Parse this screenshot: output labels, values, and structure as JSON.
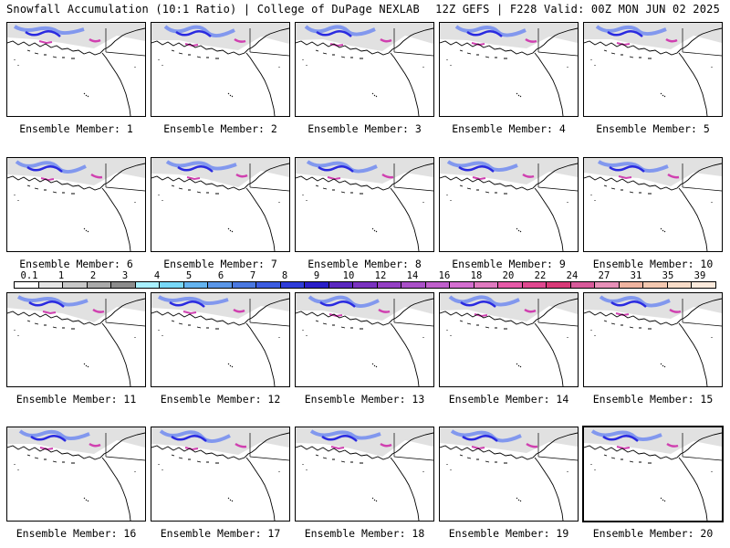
{
  "header": {
    "left": "Snowfall Accumulation (10:1 Ratio) | College of DuPage NEXLAB",
    "right": "12Z GEFS | F228 Valid: 00Z MON JUN 02 2025"
  },
  "members": [
    {
      "label": "Ensemble Member: 1"
    },
    {
      "label": "Ensemble Member: 2"
    },
    {
      "label": "Ensemble Member: 3"
    },
    {
      "label": "Ensemble Member: 4"
    },
    {
      "label": "Ensemble Member: 5"
    },
    {
      "label": "Ensemble Member: 6"
    },
    {
      "label": "Ensemble Member: 7"
    },
    {
      "label": "Ensemble Member: 8"
    },
    {
      "label": "Ensemble Member: 9"
    },
    {
      "label": "Ensemble Member: 10"
    },
    {
      "label": "Ensemble Member: 11"
    },
    {
      "label": "Ensemble Member: 12"
    },
    {
      "label": "Ensemble Member: 13"
    },
    {
      "label": "Ensemble Member: 14"
    },
    {
      "label": "Ensemble Member: 15"
    },
    {
      "label": "Ensemble Member: 16"
    },
    {
      "label": "Ensemble Member: 17"
    },
    {
      "label": "Ensemble Member: 18"
    },
    {
      "label": "Ensemble Member: 19"
    },
    {
      "label": "Ensemble Member: 20"
    }
  ],
  "colorbar": {
    "labels": [
      "0.1",
      "1",
      "2",
      "3",
      "4",
      "5",
      "6",
      "7",
      "8",
      "9",
      "10",
      "12",
      "14",
      "16",
      "18",
      "20",
      "22",
      "24",
      "27",
      "31",
      "35",
      "39"
    ],
    "colors": [
      "#ffffff",
      "#e6e6e6",
      "#c8c8c8",
      "#aaaaaa",
      "#8c8c8c",
      "#a8f0ff",
      "#78d8f8",
      "#64b4f0",
      "#5a96e8",
      "#4a78e0",
      "#3c5ce0",
      "#2e3cd8",
      "#2a1ec8",
      "#5a28c0",
      "#7a32c0",
      "#9440c4",
      "#aa50c8",
      "#c060cc",
      "#d46ed0",
      "#e07ac0",
      "#e65aa8",
      "#e04890",
      "#d83a78",
      "#d85a9a",
      "#e890b8",
      "#f0b4a0",
      "#f4c8b0",
      "#f8dcc8",
      "#fceadc"
    ]
  },
  "colors": {
    "snow_light": "#c8c8c8",
    "snow_mid": "#7890f0",
    "snow_heavy": "#2a2ae0",
    "snow_extreme": "#d040b0",
    "coast": "#000000"
  }
}
